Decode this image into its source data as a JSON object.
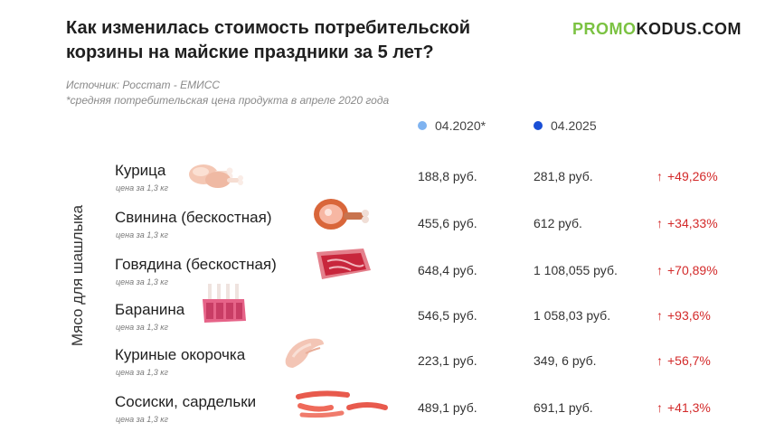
{
  "title": "Как изменилась стоимость потребительской корзины на майские праздники за 5 лет?",
  "logo": {
    "part1": "PROMO",
    "part2": "KODUS.COM"
  },
  "source": "Источник: Росстат - ЕМИСС",
  "note": "*средняя потребительская цена продукта в апреле 2020 года",
  "legend": [
    {
      "label": "04.2020*",
      "color": "#7fb3f0"
    },
    {
      "label": "04.2025",
      "color": "#1a4fd6"
    }
  ],
  "category_label": "Мясо для шашлыка",
  "arrow": "↑",
  "rows": [
    {
      "name": "Курица",
      "unit": "цена за 1,3 кг",
      "price_2020": "188,8 руб.",
      "price_2025": "281,8 руб.",
      "change": "+49,26%",
      "icon": "chicken-legs-icon"
    },
    {
      "name": "Свинина (бескостная)",
      "unit": "цена за 1,3 кг",
      "price_2020": "455,6 руб.",
      "price_2025": "612 руб.",
      "change": "+34,33%",
      "icon": "ham-icon"
    },
    {
      "name": "Говядина (бескостная)",
      "unit": "цена за 1,3 кг",
      "price_2020": "648,4 руб.",
      "price_2025": "1 108,055 руб.",
      "change": "+70,89%",
      "icon": "steak-icon"
    },
    {
      "name": "Баранина",
      "unit": "цена за 1,3 кг",
      "price_2020": "546,5 руб.",
      "price_2025": "1 058,03 руб.",
      "change": "+93,6%",
      "icon": "lamb-ribs-icon"
    },
    {
      "name": "Куриные окорочка",
      "unit": "цена за 1,3 кг",
      "price_2020": "223,1 руб.",
      "price_2025": "349, 6 руб.",
      "change": "+56,7%",
      "icon": "chicken-wing-icon"
    },
    {
      "name": "Сосиски, сардельки",
      "unit": "цена за 1,3 кг",
      "price_2020": "489,1 руб.",
      "price_2025": "691,1 руб.",
      "change": "+41,3%",
      "icon": "sausages-icon"
    }
  ]
}
